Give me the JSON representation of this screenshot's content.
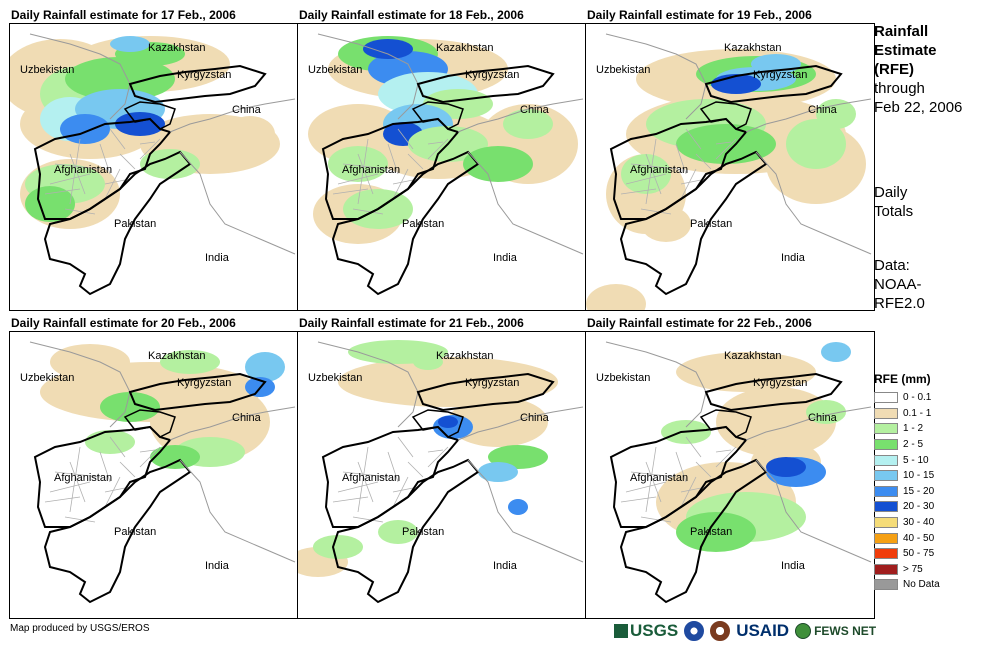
{
  "panels": [
    {
      "title": "Daily Rainfall estimate for 17 Feb., 2006"
    },
    {
      "title": "Daily Rainfall estimate for 18 Feb., 2006"
    },
    {
      "title": "Daily Rainfall estimate for 19 Feb., 2006"
    },
    {
      "title": "Daily Rainfall estimate for 20 Feb., 2006"
    },
    {
      "title": "Daily Rainfall estimate for 21 Feb., 2006"
    },
    {
      "title": "Daily Rainfall estimate for 22 Feb., 2006"
    }
  ],
  "place_labels": {
    "kazakhstan": "Kazakhstan",
    "uzbekistan": "Uzbekistan",
    "kyrgyzstan": "Kyrgyzstan",
    "china": "China",
    "afghanistan": "Afghanistan",
    "pakistan": "Pakistan",
    "india": "India"
  },
  "sidebar": {
    "title_line1": "Rainfall",
    "title_line2": "Estimate",
    "title_line3": "(RFE)",
    "through": "through",
    "date": "Feb 22, 2006",
    "totals_line1": "Daily",
    "totals_line2": "Totals",
    "data_line1": "Data:",
    "data_line2": "NOAA-",
    "data_line3": "RFE2.0"
  },
  "legend": {
    "title": "RFE (mm)",
    "items": [
      {
        "label": "0 - 0.1",
        "color": "#ffffff"
      },
      {
        "label": "0.1 - 1",
        "color": "#f0dcb4"
      },
      {
        "label": "1 - 2",
        "color": "#b4f0a0"
      },
      {
        "label": "2 - 5",
        "color": "#78e06e"
      },
      {
        "label": "5 - 10",
        "color": "#b4f0f0"
      },
      {
        "label": "10 - 15",
        "color": "#78c8f0"
      },
      {
        "label": "15 - 20",
        "color": "#3c8cf0"
      },
      {
        "label": "20 - 30",
        "color": "#1450d2"
      },
      {
        "label": "30 - 40",
        "color": "#f5dc78"
      },
      {
        "label": "40 - 50",
        "color": "#f5a014"
      },
      {
        "label": "50 - 75",
        "color": "#f03c0a"
      },
      {
        "label": "> 75",
        "color": "#a01e1e"
      },
      {
        "label": "No Data",
        "color": "#999999"
      }
    ]
  },
  "footer": {
    "credit": "Map produced by USGS/EROS",
    "logo_usgs": "USGS",
    "logo_usaid": "USAID",
    "logo_fews": "FEWS NET"
  }
}
